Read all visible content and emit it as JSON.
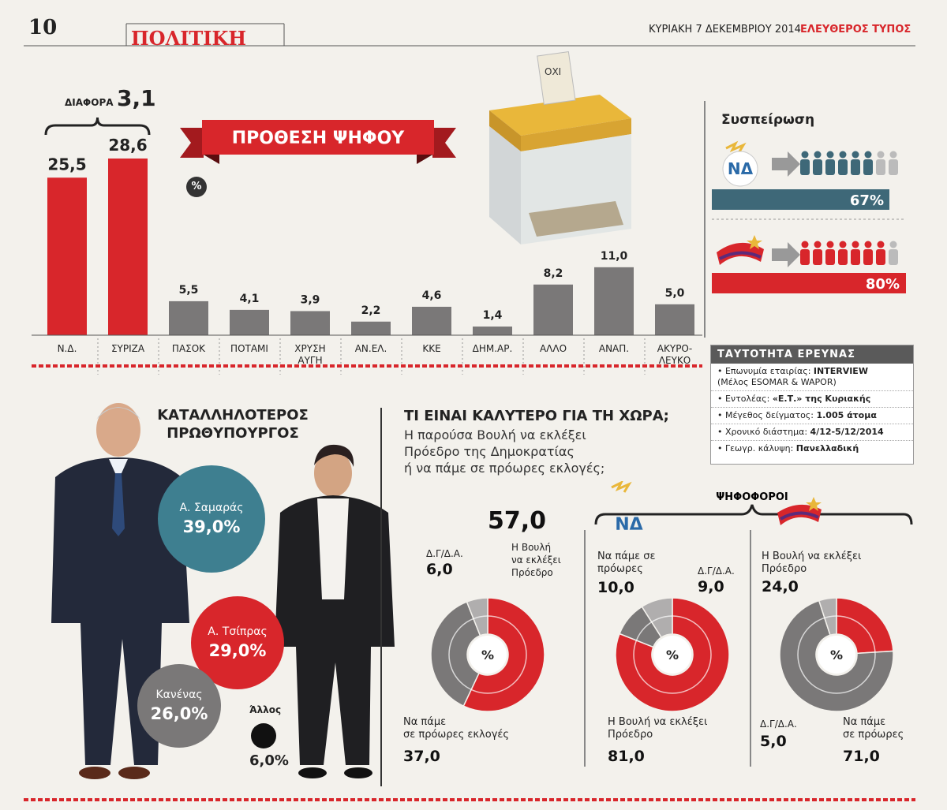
{
  "header": {
    "page_number": "10",
    "section": "ΠΟΛΙΤΙΚΗ",
    "date": "ΚΥΡΙΑΚΗ 7 ΔΕΚΕΜΒΡΙΟΥ 2014",
    "paper": "ΕΛΕΥΘΕΡΟΣ ΤΥΠΟΣ"
  },
  "colors": {
    "red": "#d8262b",
    "gray": "#7a7878",
    "teal": "#3e7f90",
    "dark": "#2a2a2a"
  },
  "chart_data": [
    {
      "type": "bar",
      "title": "ΠΡΟΘΕΣΗ ΨΗΦΟΥ",
      "unit": "%",
      "difference_label": "ΔΙΑΦΟΡΑ",
      "difference_value": "3,1",
      "categories": [
        "Ν.Δ.",
        "ΣΥΡΙΖΑ",
        "ΠΑΣΟΚ",
        "ΠΟΤΑΜΙ",
        "ΧΡΥΣΗ ΑΥΓΗ",
        "ΑΝ.ΕΛ.",
        "ΚΚΕ",
        "ΔΗΜ.ΑΡ.",
        "ΑΛΛΟ",
        "ΑΝΑΠ.",
        "ΑΚΥΡΟ-ΛΕΥΚΟ"
      ],
      "category_lines": [
        [
          "Ν.Δ."
        ],
        [
          "ΣΥΡΙΖΑ"
        ],
        [
          "ΠΑΣΟΚ"
        ],
        [
          "ΠΟΤΑΜΙ"
        ],
        [
          "ΧΡΥΣΗ",
          "ΑΥΓΗ"
        ],
        [
          "ΑΝ.ΕΛ."
        ],
        [
          "ΚΚΕ"
        ],
        [
          "ΔΗΜ.ΑΡ."
        ],
        [
          "ΑΛΛΟ"
        ],
        [
          "ΑΝΑΠ."
        ],
        [
          "ΑΚΥΡΟ-",
          "ΛΕΥΚΟ"
        ]
      ],
      "values": [
        25.5,
        28.6,
        5.5,
        4.1,
        3.9,
        2.2,
        4.6,
        1.4,
        8.2,
        11.0,
        5.0
      ],
      "value_labels": [
        "25,5",
        "28,6",
        "5,5",
        "4,1",
        "3,9",
        "2,2",
        "4,6",
        "1,4",
        "8,2",
        "11,0",
        "5,0"
      ],
      "highlight": [
        true,
        true,
        false,
        false,
        false,
        false,
        false,
        false,
        false,
        false,
        false
      ],
      "ylim": [
        0,
        30
      ]
    },
    {
      "type": "bar",
      "title": "Συσπείρωση",
      "categories": [
        "ΝΔ",
        "ΣΥΡΙΖΑ"
      ],
      "values": [
        67,
        80
      ],
      "value_labels": [
        "67%",
        "80%"
      ],
      "logo_text": "ΝΔ"
    },
    {
      "type": "pie",
      "title": "ΚΑΤΑΛΛΗΛΟΤΕΡΟΣ ΠΡΩΘΥΠΟΥΡΓΟΣ",
      "title_lines": [
        "ΚΑΤΑΛΛΗΛΟΤΕΡΟΣ",
        "ΠΡΩΘΥΠΟΥΡΓΟΣ"
      ],
      "labels": [
        "Α. Σαμαράς",
        "Α. Τσίπρας",
        "Κανένας",
        "Άλλος"
      ],
      "values": [
        39.0,
        29.0,
        26.0,
        6.0
      ],
      "value_labels": [
        "39,0%",
        "29,0%",
        "26,0%",
        "6,0%"
      ]
    },
    {
      "type": "pie",
      "title": "ΤΙ ΕΙΝΑΙ ΚΑΛΥΤΕΡΟ ΓΙΑ ΤΗ ΧΩΡΑ;",
      "subtitle_lines": [
        "Η παρούσα Βουλή να εκλέξει",
        "Πρόεδρο της Δημοκρατίας",
        "ή να πάμε σε πρόωρες εκλογές;"
      ],
      "voters_label": "ΨΗΦΟΦΟΡΟΙ",
      "center_label": "%",
      "donuts": [
        {
          "group": "all",
          "slices": [
            {
              "label": "Η Βουλή να εκλέξει Πρόεδρο",
              "value": 57.0,
              "text": "57,0"
            },
            {
              "label": "Να πάμε σε πρόωρες εκλογές",
              "value": 37.0,
              "text": "37,0"
            },
            {
              "label": "Δ.Γ/Δ.Α.",
              "value": 6.0,
              "text": "6,0"
            }
          ]
        },
        {
          "group": "ΝΔ",
          "slices": [
            {
              "label": "Η Βουλή να εκλέξει Πρόεδρο",
              "value": 81.0,
              "text": "81,0"
            },
            {
              "label": "Να πάμε σε πρόωρες",
              "value": 10.0,
              "text": "10,0"
            },
            {
              "label": "Δ.Γ/Δ.Α.",
              "value": 9.0,
              "text": "9,0"
            }
          ]
        },
        {
          "group": "ΣΥΡΙΖΑ",
          "slices": [
            {
              "label": "Η Βουλή να εκλέξει Πρόεδρο",
              "value": 24.0,
              "text": "24,0"
            },
            {
              "label": "Να πάμε σε πρόωρες",
              "value": 71.0,
              "text": "71,0"
            },
            {
              "label": "Δ.Γ/Δ.Α.",
              "value": 5.0,
              "text": "5,0"
            }
          ]
        }
      ]
    }
  ],
  "donut_text": {
    "d1_main_lines": [
      "Η Βουλή",
      "να εκλέξει",
      "Πρόεδρο"
    ],
    "d1_early_lines": [
      "Να πάμε",
      "σε πρόωρες εκλογές"
    ],
    "d1_dk": "Δ.Γ/Δ.Α.",
    "d2_main_lines": [
      "Η Βουλή να εκλέξει",
      "Πρόεδρο"
    ],
    "d2_early_lines": [
      "Να πάμε σε",
      "πρόωρες"
    ],
    "d2_dk": "Δ.Γ/Δ.Α.",
    "d3_main_lines": [
      "Η Βουλή να εκλέξει",
      "Πρόεδρο"
    ],
    "d3_early_lines": [
      "Να πάμε",
      "σε πρόωρες"
    ],
    "d3_dk": "Δ.Γ/Δ.Α."
  },
  "survey": {
    "title": "ΤΑΥΤΟΤΗΤΑ ΕΡΕΥΝΑΣ",
    "rows": [
      {
        "label": "• Επωνυμία εταιρίας: ",
        "value": "INTERVIEW",
        "extra": "(Μέλος ESOMAR & WAPOR)"
      },
      {
        "label": "• Εντολέας: ",
        "value": "«Ε.Τ.» της Κυριακής",
        "extra": ""
      },
      {
        "label": "• Μέγεθος δείγματος: ",
        "value": "1.005 άτομα",
        "extra": ""
      },
      {
        "label": "• Χρονικό διάστημα: ",
        "value": "4/12-5/12/2014",
        "extra": ""
      },
      {
        "label": "• Γεωγρ. κάλυψη: ",
        "value": "Πανελλαδική",
        "extra": ""
      }
    ]
  },
  "ballot_box_text": [
    "ΟΧΙ",
    "ΟΧΙ"
  ]
}
